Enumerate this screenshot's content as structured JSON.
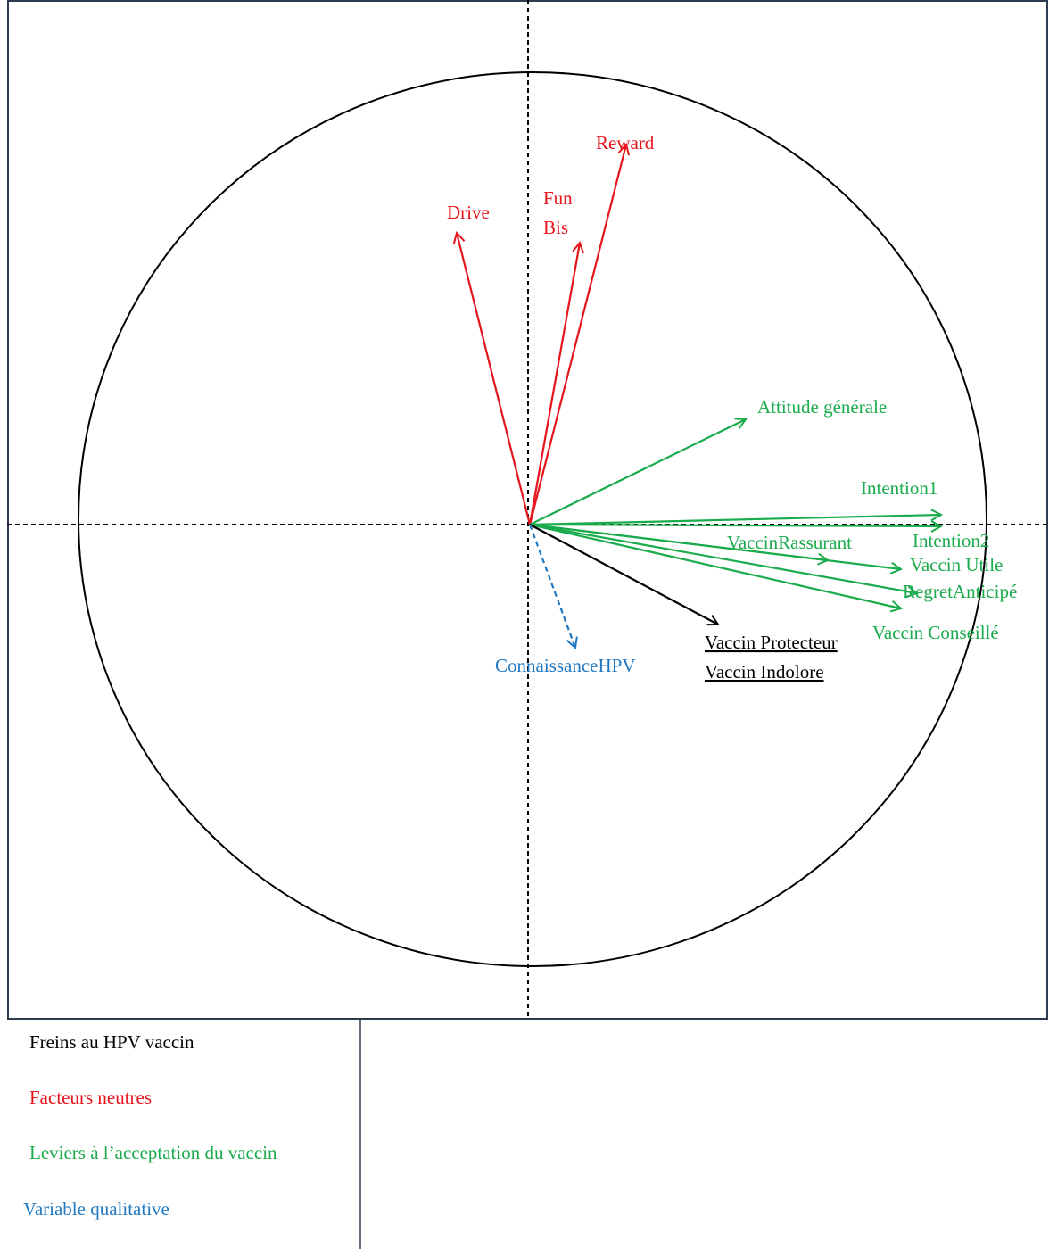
{
  "vectors": [
    {
      "label": "Drive"
    },
    {
      "label_lines": [
        "Fun",
        "Bis"
      ]
    },
    {
      "label": "Reward"
    },
    {
      "label": "Attitude générale"
    },
    {
      "label": "Intention1"
    },
    {
      "label": "Intention2"
    },
    {
      "label": "VaccinRassurant"
    },
    {
      "label": "Vaccin Utile"
    },
    {
      "label": "RegretAnticipé"
    },
    {
      "label": "Vaccin Conseillé"
    },
    {
      "label_lines": [
        "Vaccin Protecteur",
        "Vaccin Indolore"
      ]
    },
    {
      "label": "ConnaissanceHPV"
    }
  ],
  "legend": [
    "Freins au HPV vaccin",
    "Facteurs neutres",
    "Leviers à l’acceptation du vaccin",
    "Variable qualitative"
  ]
}
